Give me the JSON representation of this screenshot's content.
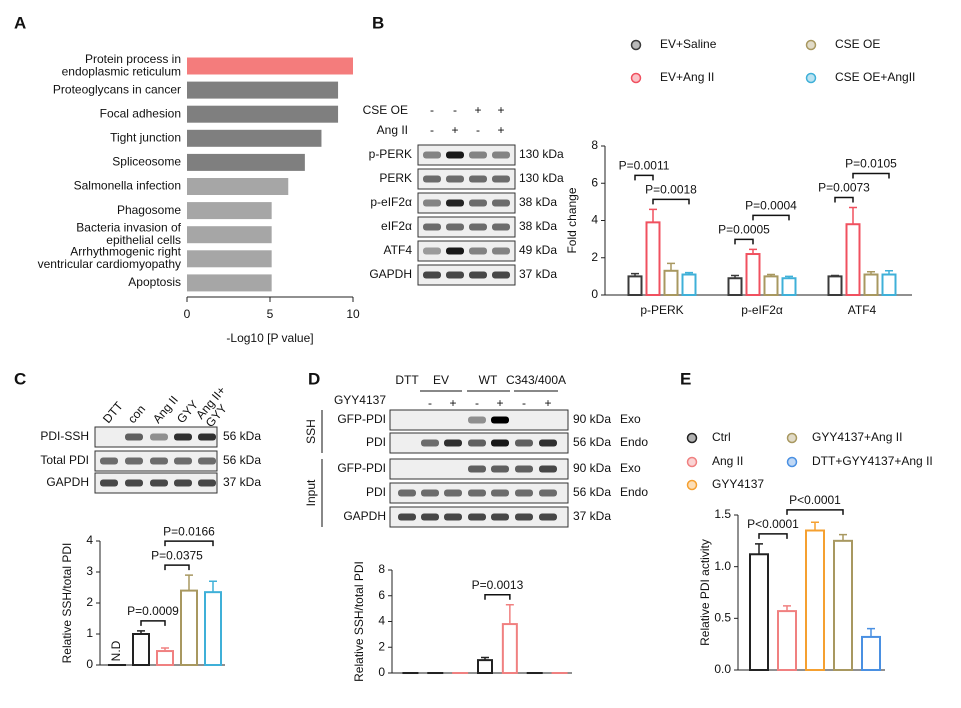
{
  "panel_letters": [
    "A",
    "B",
    "C",
    "D",
    "E"
  ],
  "chart_data": [
    {
      "type": "hbar",
      "categories": [
        "Protein process in\nendoplasmic reticulum",
        "Proteoglycans in cancer",
        "Focal adhesion",
        "Tight junction",
        "Spliceosome",
        "Salmonella infection",
        "Phagosome",
        "Bacteria invasion of\nepithelial cells",
        "Arrhythmogenic right\nventricular cardiomyopathy",
        "Apoptosis"
      ],
      "values": [
        10,
        9.1,
        9.1,
        8.1,
        7.1,
        6.1,
        5.1,
        5.1,
        5.1,
        5.1
      ],
      "colors": [
        "#f47c7c",
        "#7f7f7f",
        "#7f7f7f",
        "#7f7f7f",
        "#7f7f7f",
        "#a6a6a6",
        "#a6a6a6",
        "#a6a6a6",
        "#a6a6a6",
        "#a6a6a6"
      ],
      "xlim": [
        0,
        10
      ],
      "xticks": [
        0,
        5,
        10
      ],
      "xlabel": "-Log10 [P value]"
    },
    {
      "type": "bar",
      "legend": "series",
      "categories": [
        "p-PERK",
        "p-eIF2α",
        "ATF4"
      ],
      "series": [
        {
          "name": "EV+Saline",
          "color": "#3a3a3a",
          "values": [
            1.0,
            0.9,
            1.0
          ],
          "errors": [
            0.15,
            0.15,
            0.05
          ]
        },
        {
          "name": "EV+Ang II",
          "color": "#f0505f",
          "values": [
            3.9,
            2.2,
            3.8
          ],
          "errors": [
            0.7,
            0.25,
            0.9
          ]
        },
        {
          "name": "CSE OE",
          "color": "#a89860",
          "values": [
            1.3,
            1.0,
            1.1
          ],
          "errors": [
            0.4,
            0.1,
            0.15
          ]
        },
        {
          "name": "CSE OE+AngII",
          "color": "#3fb0d8",
          "values": [
            1.1,
            0.9,
            1.1
          ],
          "errors": [
            0.1,
            0.1,
            0.2
          ]
        }
      ],
      "ylim": [
        0,
        8
      ],
      "yticks": [
        0,
        2,
        4,
        6,
        8
      ],
      "ylabel": "Fold change",
      "annotations": [
        {
          "category": 0,
          "between": [
            1,
            3
          ],
          "text": "P=0.0018"
        },
        {
          "category": 0,
          "between": [
            0,
            1
          ],
          "text": "P=0.0011"
        },
        {
          "category": 1,
          "between": [
            0,
            1
          ],
          "text": "P=0.0005"
        },
        {
          "category": 1,
          "between": [
            1,
            3
          ],
          "text": "P=0.0004"
        },
        {
          "category": 2,
          "between": [
            0,
            1
          ],
          "text": "P=0.0073"
        },
        {
          "category": 2,
          "between": [
            1,
            3
          ],
          "text": "P=0.0105"
        }
      ]
    },
    {
      "type": "bar",
      "values": [
        0,
        1.0,
        0.45,
        2.4,
        2.35
      ],
      "errors": [
        0,
        0.1,
        0.1,
        0.5,
        0.35
      ],
      "colors": [
        "#222222",
        "#222222",
        "#f08080",
        "#a89860",
        "#3fb0d8"
      ],
      "ylim": [
        0,
        4
      ],
      "yticks": [
        0,
        1,
        2,
        3,
        4
      ],
      "ylabel": "Relative SSH/total PDI",
      "annotations": [
        {
          "at": 0,
          "text": "N.D"
        },
        {
          "between": [
            1,
            2
          ],
          "text": "P=0.0009"
        },
        {
          "between": [
            2,
            3
          ],
          "text": "P=0.0375"
        },
        {
          "between": [
            2,
            4
          ],
          "text": "P=0.0166"
        }
      ]
    },
    {
      "type": "bar",
      "values": [
        0,
        0,
        0,
        1.0,
        3.8,
        0,
        0
      ],
      "errors": [
        0,
        0,
        0,
        0.2,
        1.5,
        0,
        0
      ],
      "colors": [
        "#222222",
        "#222222",
        "#f08080",
        "#222222",
        "#f08080",
        "#222222",
        "#f08080"
      ],
      "ylim": [
        0,
        8
      ],
      "yticks": [
        0,
        2,
        4,
        6,
        8
      ],
      "ylabel": "Relative SSH/total PDI",
      "annotations": [
        {
          "between": [
            3,
            4
          ],
          "text": "P=0.0013"
        }
      ]
    },
    {
      "type": "bar",
      "legend": "categories",
      "categories": [
        "Ctrl",
        "Ang II",
        "GYY4137",
        "GYY4137+Ang II",
        "DTT+GYY4137+Ang II"
      ],
      "values": [
        1.12,
        0.57,
        1.35,
        1.25,
        0.32
      ],
      "errors": [
        0.1,
        0.05,
        0.08,
        0.06,
        0.08
      ],
      "colors": [
        "#222222",
        "#f08080",
        "#f5a030",
        "#a89860",
        "#4a90e2"
      ],
      "ylim": [
        0,
        1.5
      ],
      "yticks": [
        {
          "value": 0,
          "label": "0.0"
        },
        0.5,
        {
          "value": 1,
          "label": "1.0"
        },
        1.5
      ],
      "ylabel": "Relative PDI activity",
      "annotations": [
        {
          "between": [
            0,
            1
          ],
          "text": "P<0.0001"
        },
        {
          "between": [
            1,
            3
          ],
          "text": "P<0.0001"
        }
      ]
    }
  ],
  "blots": [
    {
      "header_rows": [
        {
          "label": "CSE OE",
          "marks": [
            "-",
            "-",
            "+",
            "+"
          ]
        },
        {
          "label": "Ang II",
          "marks": [
            "-",
            "+",
            "-",
            "+"
          ]
        }
      ],
      "rows": [
        {
          "label": "p-PERK",
          "size": "130 kDa"
        },
        {
          "label": "PERK",
          "size": "130 kDa"
        },
        {
          "label": "p-eIF2α",
          "size": "38 kDa"
        },
        {
          "label": "eIF2α",
          "size": "38 kDa"
        },
        {
          "label": "ATF4",
          "size": "49 kDa"
        },
        {
          "label": "GAPDH",
          "size": "37 kDa"
        }
      ]
    },
    {
      "lanes": [
        "DTT",
        "con",
        "Ang II",
        "GYY",
        "Ang II+\nGYY"
      ],
      "rows": [
        {
          "label": "PDI-SSH",
          "size": "56 kDa"
        },
        {
          "label": "Total PDI",
          "size": "56 kDa"
        },
        {
          "label": "GAPDH",
          "size": "37 kDa"
        }
      ]
    },
    {
      "lane_groups": [
        "DTT",
        "EV",
        "WT",
        "C343/400A"
      ],
      "treatment": {
        "label": "GYY4137",
        "marks": [
          "-",
          "+",
          "-",
          "+",
          "-",
          "+"
        ]
      },
      "sections": [
        {
          "label": "SSH",
          "rows": [
            {
              "label": "GFP-PDI",
              "size": "90 kDa",
              "tag": "Exo"
            },
            {
              "label": "PDI",
              "size": "56 kDa",
              "tag": "Endo"
            }
          ]
        },
        {
          "label": "Input",
          "rows": [
            {
              "label": "GFP-PDI",
              "size": "90 kDa",
              "tag": "Exo"
            },
            {
              "label": "PDI",
              "size": "56 kDa",
              "tag": "Endo"
            },
            {
              "label": "GAPDH",
              "size": "37 kDa"
            }
          ]
        }
      ]
    }
  ]
}
